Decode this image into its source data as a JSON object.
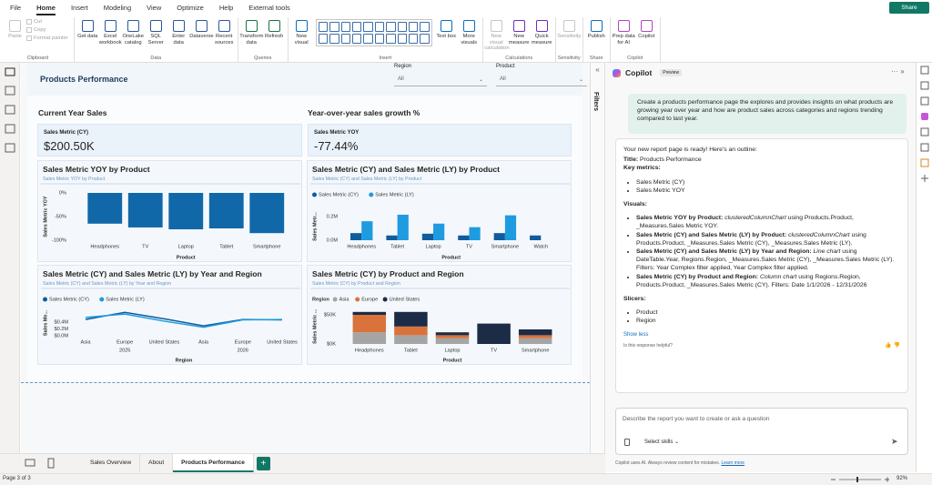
{
  "menu": {
    "tabs": [
      {
        "label": "File",
        "active": false
      },
      {
        "label": "Home",
        "active": true
      },
      {
        "label": "Insert",
        "active": false
      },
      {
        "label": "Modeling",
        "active": false
      },
      {
        "label": "View",
        "active": false
      },
      {
        "label": "Optimize",
        "active": false
      },
      {
        "label": "Help",
        "active": false
      },
      {
        "label": "External tools",
        "active": false
      }
    ],
    "share": "Share"
  },
  "ribbon": {
    "groups": [
      {
        "name": "Clipboard",
        "buttons": [
          {
            "label": "Paste",
            "disabled": true
          }
        ],
        "small": [
          {
            "label": "Cut",
            "disabled": true
          },
          {
            "label": "Copy",
            "disabled": true
          },
          {
            "label": "Format painter",
            "disabled": true
          }
        ]
      },
      {
        "name": "Data",
        "buttons": [
          {
            "label": "Get data"
          },
          {
            "label": "Excel workbook"
          },
          {
            "label": "OneLake catalog"
          },
          {
            "label": "SQL Server"
          },
          {
            "label": "Enter data"
          },
          {
            "label": "Dataverse"
          },
          {
            "label": "Recent sources"
          }
        ]
      },
      {
        "name": "Queries",
        "buttons": [
          {
            "label": "Transform data"
          },
          {
            "label": "Refresh"
          }
        ]
      },
      {
        "name": "Insert",
        "gallery": true,
        "buttons": [
          {
            "label": "New visual"
          },
          {
            "label": "Text box"
          },
          {
            "label": "More visuals"
          }
        ]
      },
      {
        "name": "Calculations",
        "buttons": [
          {
            "label": "New visual calculation",
            "disabled": true
          },
          {
            "label": "New measure"
          },
          {
            "label": "Quick measure"
          }
        ]
      },
      {
        "name": "Sensitivity",
        "buttons": [
          {
            "label": "Sensitivity",
            "disabled": true
          }
        ]
      },
      {
        "name": "Share",
        "buttons": [
          {
            "label": "Publish"
          }
        ]
      },
      {
        "name": "Copilot",
        "buttons": [
          {
            "label": "Prep data for AI"
          },
          {
            "label": "Copilot"
          }
        ]
      }
    ]
  },
  "report": {
    "title": "Products Performance",
    "slicers": [
      {
        "label": "Region",
        "value": "All"
      },
      {
        "label": "Product",
        "value": "All"
      }
    ],
    "cards": [
      {
        "heading": "Current Year Sales",
        "label": "Sales Metric (CY)",
        "value": "$200.50K"
      },
      {
        "heading": "Year-over-year sales growth %",
        "label": "Sales Metric YOY",
        "value": "-77.44%"
      }
    ]
  },
  "chart_data": [
    {
      "type": "bar",
      "title": "Sales Metric YOY by Product",
      "subtitle": "Sales Metric YOY by Product",
      "y_label": "Sales Metric YOY",
      "x_label": "Product",
      "categories": [
        "Headphones",
        "TV",
        "Laptop",
        "Tablet",
        "Smartphone"
      ],
      "values": [
        -65,
        -73,
        -77,
        -75,
        -85
      ],
      "color": "#1168a8",
      "ylim": [
        -100,
        0
      ],
      "yticks": [
        {
          "value": 0,
          "label": "0%"
        },
        {
          "value": -50,
          "label": "-50%"
        },
        {
          "value": -100,
          "label": "-100%"
        }
      ]
    },
    {
      "type": "bar",
      "title": "Sales Metric (CY) and Sales Metric (LY) by Product",
      "subtitle": "Sales Metric (CY) and Sales Metric (LY) by Product",
      "y_label": "Sales Metr...",
      "x_label": "Product",
      "categories": [
        "Headphones",
        "Tablet",
        "Laptop",
        "TV",
        "Smartphone",
        "Watch"
      ],
      "series": [
        {
          "name": "Sales Metric (CY)",
          "color": "#0f5c9e",
          "values": [
            60000,
            40000,
            55000,
            40000,
            60000,
            40000
          ]
        },
        {
          "name": "Sales Metric (LY)",
          "color": "#1f9be0",
          "values": [
            160000,
            215000,
            140000,
            110000,
            210000,
            null
          ]
        }
      ],
      "ylim": [
        0,
        230000
      ],
      "yticks": [
        {
          "value": 0,
          "label": "0.0M"
        },
        {
          "value": 200000,
          "label": "0.2M"
        }
      ]
    },
    {
      "type": "line",
      "title": "Sales Metric (CY) and Sales Metric (LY) by Year and Region",
      "subtitle": "Sales Metric (CY) and Sales Metric (LY) by Year and Region",
      "y_label": "Sales Me...",
      "x_label": "Region",
      "categories": [
        "Asia",
        "Europe",
        "United States",
        "Asia",
        "Europe",
        "United States"
      ],
      "category_groups": [
        "2025",
        "2026"
      ],
      "series": [
        {
          "name": "Sales Metric (CY)",
          "color": "#0f5c9e",
          "values": [
            480000,
            690000,
            500000,
            290000,
            480000,
            470000
          ]
        },
        {
          "name": "Sales Metric (LY)",
          "color": "#1f9be0",
          "values": [
            540000,
            640000,
            430000,
            250000,
            470000,
            480000
          ]
        }
      ],
      "ylim": [
        0,
        750000
      ],
      "yticks": [
        {
          "value": 0,
          "label": "$0.0M"
        },
        {
          "value": 200000,
          "label": "$0.2M"
        },
        {
          "value": 400000,
          "label": "$0.4M"
        }
      ]
    },
    {
      "type": "stacked_bar",
      "title": "Sales Metric (CY) by Product and Region",
      "subtitle": "Sales Metric (CY) by Product and Region",
      "y_label": "Sales Metric ...",
      "x_label": "Product",
      "legend_title": "Region",
      "categories": [
        "Headphones",
        "Tablet",
        "Laptop",
        "TV",
        "Smartphone"
      ],
      "series": [
        {
          "name": "Asia",
          "color": "#a5a5a5",
          "values": [
            20000,
            15000,
            10000,
            null,
            10000
          ]
        },
        {
          "name": "Europe",
          "color": "#d9733b",
          "values": [
            30000,
            15000,
            5000,
            null,
            5000
          ]
        },
        {
          "name": "United States",
          "color": "#1c2b46",
          "values": [
            5000,
            25000,
            5000,
            35000,
            10000
          ]
        }
      ],
      "ylim": [
        0,
        60000
      ],
      "yticks": [
        {
          "value": 0,
          "label": "$0K"
        },
        {
          "value": 50000,
          "label": "$50K"
        }
      ]
    }
  ],
  "filters": "Filters",
  "copilot": {
    "title": "Copilot",
    "badge": "Preview",
    "prompt": "Create a products performance page the explores and provides insights on what products are growing year over year and how are product sales across categories and regions trending compared to last year.",
    "response": {
      "intro": "Your new report page is ready! Here's an outline:",
      "title_label": "Title:",
      "title_value": "Products Performance",
      "metrics_heading": "Key metrics:",
      "metrics": [
        "Sales Metric (CY)",
        "Sales Metric YOY"
      ],
      "visuals_heading": "Visuals:",
      "visuals": [
        {
          "name": "Sales Metric YOY by Product:",
          "chart": "clusteredColumnChart",
          "text": "using Products.Product, _Measures.Sales Metric YOY."
        },
        {
          "name": "Sales Metric (CY) and Sales Metric (LY) by Product:",
          "chart": "clusteredColumnChart",
          "text": "using Products.Product, _Measures.Sales Metric (CY), _Measures.Sales Metric (LY)."
        },
        {
          "name": "Sales Metric (CY) and Sales Metric (LY) by Year and Region:",
          "chart": "Line chart",
          "text": "using DateTable.Year, Regions.Region, _Measures.Sales Metric (CY), _Measures.Sales Metric (LY). Filters: Year Complex filter applied, Year Complex filter applied."
        },
        {
          "name": "Sales Metric (CY) by Product and Region:",
          "chart": "Column chart",
          "text": "using Regions.Region, Products.Product, _Measures.Sales Metric (CY). Filters: Date 1/1/2026 - 12/31/2026"
        }
      ],
      "slicers_heading": "Slicers:",
      "slicers": [
        "Product",
        "Region"
      ]
    },
    "show_less": "Show less",
    "feedback": "Is this response helpful?",
    "input_placeholder": "Describe the report you want to create or ask a question",
    "skills": "Select skills",
    "disclaimer": "Copilot uses AI. Always review content for mistakes.",
    "learn_more": "Learn more"
  },
  "pages": [
    {
      "label": "Sales Overview",
      "active": false
    },
    {
      "label": "About",
      "active": false
    },
    {
      "label": "Products Performance",
      "active": true
    }
  ],
  "status": {
    "page": "Page 3 of 3",
    "zoom": "92%"
  }
}
